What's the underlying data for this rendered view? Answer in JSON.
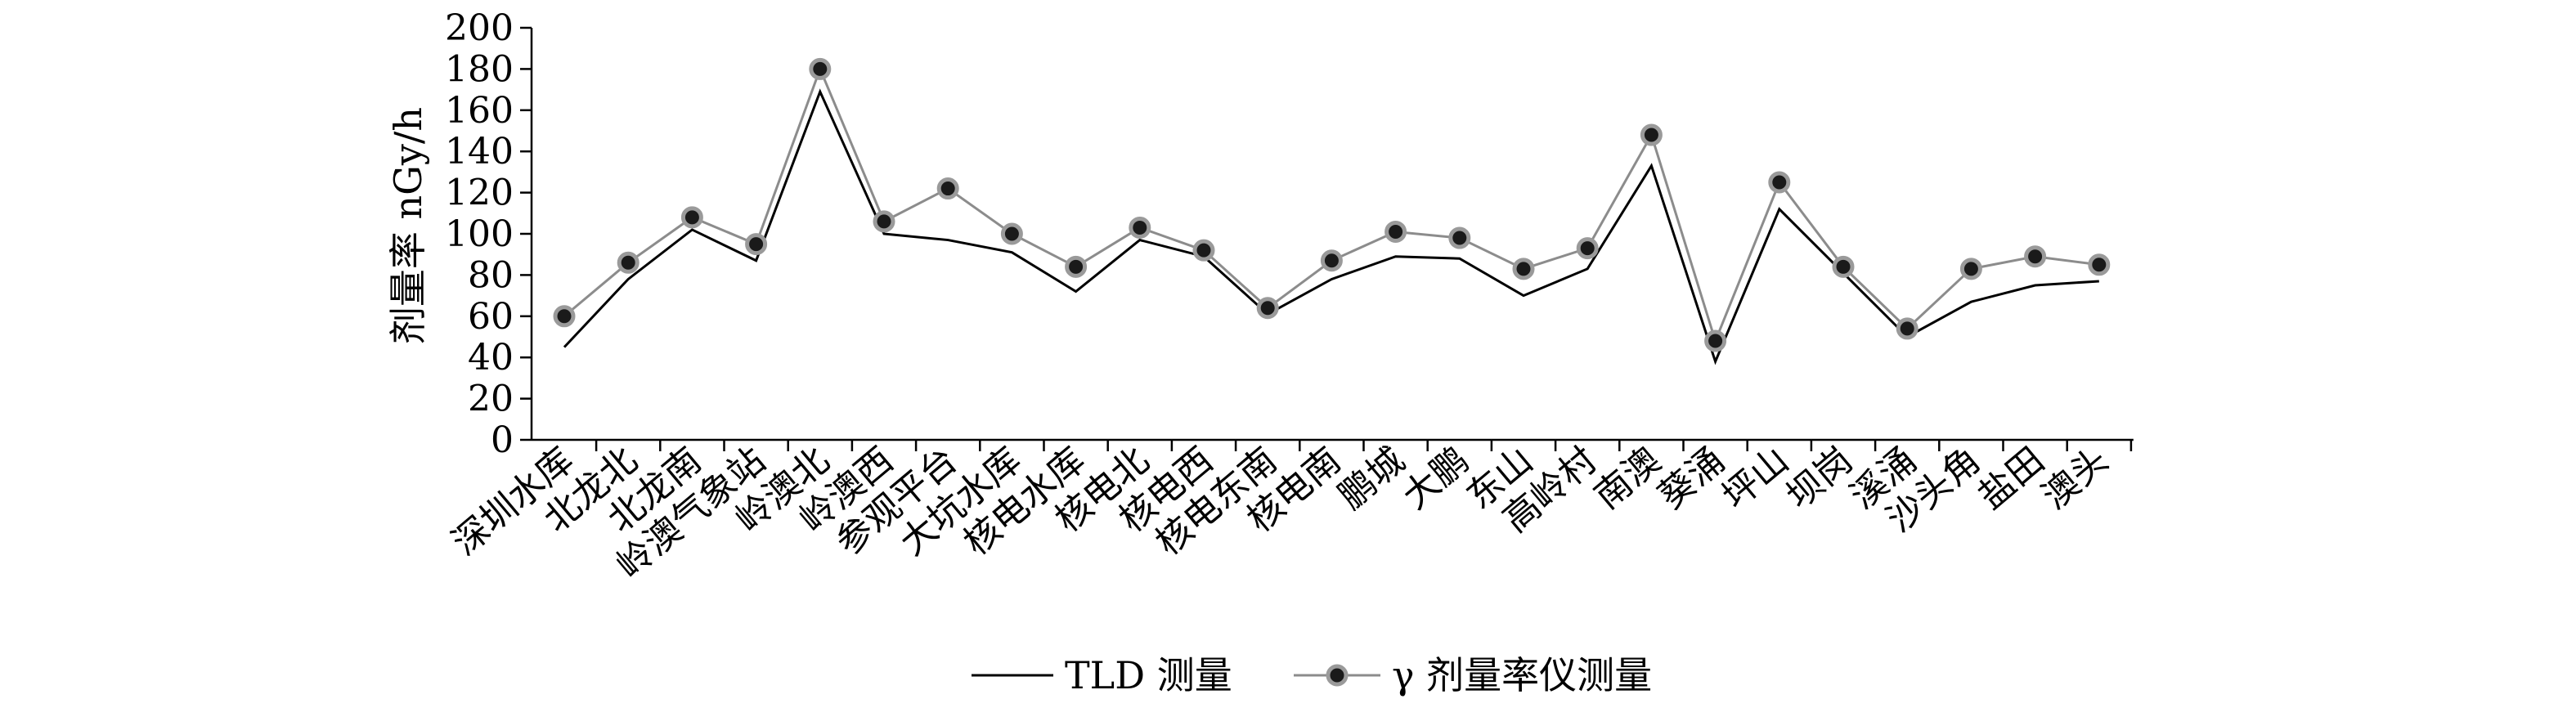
{
  "chart_data": {
    "type": "line",
    "title": "",
    "xlabel": "",
    "ylabel": "剂量率 nGy/h",
    "ylim": [
      0,
      200
    ],
    "yticks": [
      0,
      20,
      40,
      60,
      80,
      100,
      120,
      140,
      160,
      180,
      200
    ],
    "grid": false,
    "legend_position": "bottom",
    "categories": [
      "深圳水库",
      "北龙北",
      "北龙南",
      "岭澳气象站",
      "岭澳北",
      "岭澳西",
      "参观平台",
      "大坑水库",
      "核电水库",
      "核电北",
      "核电西",
      "核电东南",
      "核电南",
      "鹏城",
      "大鹏",
      "东山",
      "高岭村",
      "南澳",
      "葵涌",
      "坪山",
      "坝岗",
      "溪涌",
      "沙头角",
      "盐田",
      "澳头"
    ],
    "series": [
      {
        "name": "TLD 测量",
        "color": "#000000",
        "marker": "none",
        "values": [
          45,
          78,
          102,
          87,
          169,
          100,
          97,
          91,
          72,
          97,
          89,
          61,
          78,
          89,
          88,
          70,
          83,
          133,
          38,
          112,
          81,
          50,
          67,
          75,
          77
        ]
      },
      {
        "name": "γ 剂量率仪测量",
        "color": "#8c8c8c",
        "marker": "circle",
        "values": [
          60,
          86,
          108,
          95,
          180,
          106,
          122,
          100,
          84,
          103,
          92,
          64,
          87,
          101,
          98,
          83,
          93,
          148,
          48,
          125,
          84,
          54,
          83,
          89,
          85
        ]
      }
    ]
  }
}
